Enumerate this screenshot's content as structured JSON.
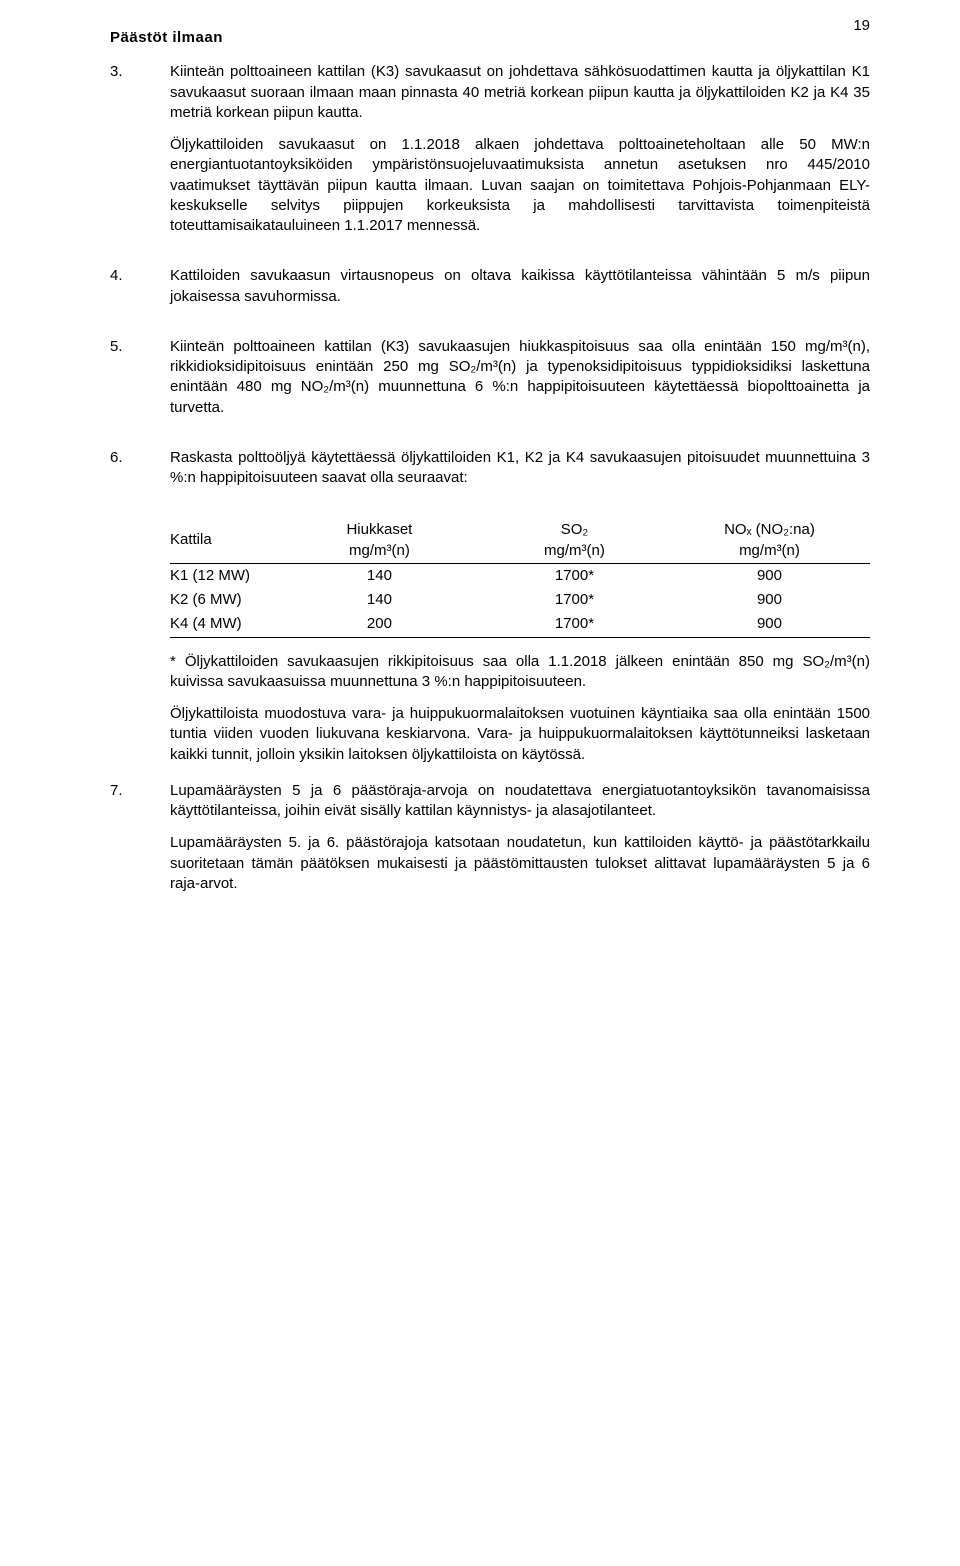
{
  "page_number": "19",
  "section_title": "Päästöt ilmaan",
  "items": [
    {
      "num": "3.",
      "paragraphs": [
        "Kiinteän polttoaineen kattilan (K3) savukaasut on johdettava sähkösuodattimen kautta ja öljykattilan K1 savukaasut suoraan ilmaan maan pinnasta 40 metriä korkean piipun kautta ja öljykattiloiden K2 ja K4 35 metriä korkean piipun kautta.",
        "Öljykattiloiden savukaasut on 1.1.2018 alkaen johdettava polttoaineteholtaan alle 50 MW:n energiantuotantoyksiköiden ympäristönsuojeluvaatimuksista annetun asetuksen nro 445/2010 vaatimukset täyttävän piipun kautta ilmaan. Luvan saajan on toimitettava Pohjois-Pohjanmaan ELY-keskukselle selvitys piippujen korkeuksista ja mahdollisesti tarvittavista toimenpiteistä toteuttamisaikatauluineen 1.1.2017 mennessä."
      ]
    },
    {
      "num": "4.",
      "paragraphs": [
        "Kattiloiden savukaasun virtausnopeus on oltava kaikissa käyttötilanteissa vähintään 5 m/s piipun jokaisessa savuhormissa."
      ]
    },
    {
      "num": "5.",
      "paragraphs": [
        "Kiinteän polttoaineen kattilan (K3) savukaasujen hiukkaspitoisuus saa olla enintään 150 mg/m³(n), rikkidioksidipitoisuus enintään 250 mg SO₂/m³(n) ja typenoksidipitoisuus typpidioksidiksi laskettuna enintään 480 mg NO₂/m³(n) muunnettuna 6 %:n happipitoisuuteen käytettäessä biopolttoainetta ja turvetta."
      ]
    },
    {
      "num": "6.",
      "paragraphs": [
        "Raskasta polttoöljyä käytettäessä öljykattiloiden K1, K2 ja K4 savukaasujen pitoisuudet muunnettuina 3 %:n happipitoisuuteen saavat olla seuraavat:"
      ]
    }
  ],
  "table": {
    "headers": {
      "c1": "Kattila",
      "c2_line1": "Hiukkaset",
      "c2_line2": "mg/m³(n)",
      "c3_line1": "SO₂",
      "c3_line2": "mg/m³(n)",
      "c4_line1": "NOₓ (NO₂:na)",
      "c4_line2": "mg/m³(n)"
    },
    "rows": [
      {
        "c1": "K1 (12 MW)",
        "c2": "140",
        "c3": "1700*",
        "c4": "900"
      },
      {
        "c1": "K2 (6 MW)",
        "c2": "140",
        "c3": "1700*",
        "c4": "900"
      },
      {
        "c1": "K4 (4 MW)",
        "c2": "200",
        "c3": "1700*",
        "c4": "900"
      }
    ]
  },
  "notes": [
    "* Öljykattiloiden savukaasujen rikkipitoisuus saa olla 1.1.2018 jälkeen enintään 850 mg SO₂/m³(n) kuivissa savukaasuissa muunnettuna 3 %:n happipitoisuuteen.",
    "Öljykattiloista muodostuva vara- ja huippukuormalaitoksen vuotuinen käyntiaika saa olla enintään 1500 tuntia viiden vuoden liukuvana keskiarvona. Vara- ja huippukuormalaitoksen käyttötunneiksi lasketaan kaikki tunnit, jolloin yksikin laitoksen öljykattiloista on käytössä."
  ],
  "item7": {
    "num": "7.",
    "paragraphs": [
      "Lupamääräysten 5 ja 6 päästöraja-arvoja on noudatettava energiatuotantoyksikön tavanomaisissa käyttötilanteissa, joihin eivät sisälly kattilan käynnistys- ja alasajotilanteet.",
      "Lupamääräysten 5. ja 6. päästörajoja katsotaan noudatetun, kun kattiloiden käyttö- ja päästötarkkailu suoritetaan tämän päätöksen mukaisesti ja päästömittausten tulokset alittavat lupamääräysten 5 ja 6 raja-arvot."
    ]
  }
}
